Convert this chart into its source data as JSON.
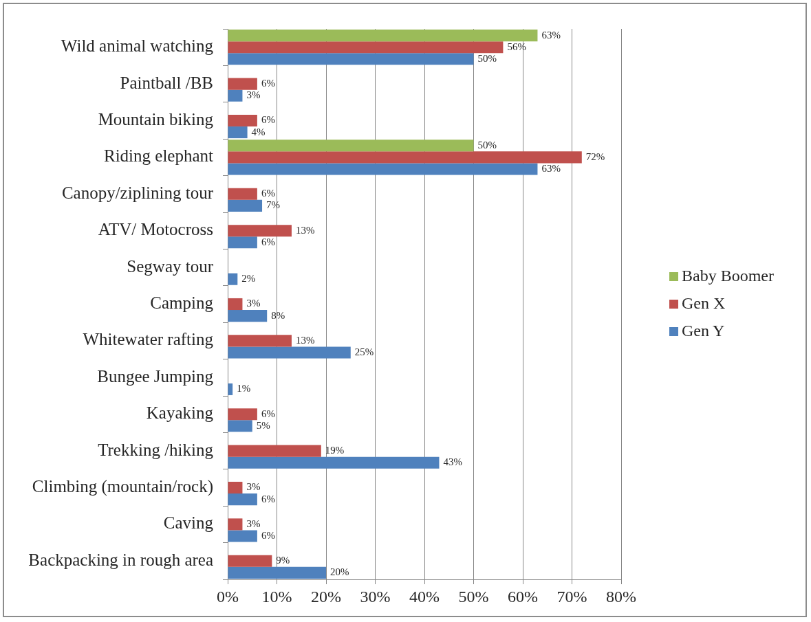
{
  "chart_data": {
    "type": "bar",
    "orientation": "horizontal",
    "categories": [
      "Wild animal watching",
      "Paintball /BB",
      "Mountain biking",
      "Riding elephant",
      "Canopy/ziplining tour",
      "ATV/ Motocross",
      "Segway tour",
      "Camping",
      "Whitewater rafting",
      "Bungee Jumping",
      "Kayaking",
      "Trekking /hiking",
      "Climbing (mountain/rock)",
      "Caving",
      "Backpacking in rough area"
    ],
    "series": [
      {
        "name": "Baby Boomer",
        "color": "#9bbb59",
        "values": [
          63,
          null,
          null,
          50,
          null,
          null,
          null,
          null,
          null,
          null,
          null,
          null,
          null,
          null,
          null
        ],
        "value_labels": [
          "63%",
          null,
          null,
          "50%",
          null,
          null,
          null,
          null,
          null,
          null,
          null,
          null,
          null,
          null,
          null
        ]
      },
      {
        "name": "Gen X",
        "color": "#c0504d",
        "values": [
          56,
          6,
          6,
          72,
          6,
          13,
          null,
          3,
          13,
          null,
          6,
          19,
          3,
          3,
          9
        ],
        "value_labels": [
          "56%",
          "6%",
          "6%",
          "72%",
          "6%",
          "13%",
          null,
          "3%",
          "13%",
          null,
          "6%",
          "19%",
          "3%",
          "3%",
          "9%"
        ]
      },
      {
        "name": "Gen Y",
        "color": "#4f81bd",
        "values": [
          50,
          3,
          4,
          63,
          7,
          6,
          2,
          8,
          25,
          1,
          5,
          43,
          6,
          6,
          20
        ],
        "value_labels": [
          "50%",
          "3%",
          "4%",
          "63%",
          "7%",
          "6%",
          "2%",
          "8%",
          "25%",
          "1%",
          "5%",
          "43%",
          "6%",
          "6%",
          "20%"
        ]
      }
    ],
    "xlim": [
      0,
      80
    ],
    "xticks": [
      {
        "value": 0,
        "label": "0%"
      },
      {
        "value": 10,
        "label": "10%"
      },
      {
        "value": 20,
        "label": "20%"
      },
      {
        "value": 30,
        "label": "30%"
      },
      {
        "value": 40,
        "label": "40%"
      },
      {
        "value": 50,
        "label": "50%"
      },
      {
        "value": 60,
        "label": "60%"
      },
      {
        "value": 70,
        "label": "70%"
      },
      {
        "value": 80,
        "label": "80%"
      }
    ],
    "grid": "x",
    "legend": "right"
  }
}
